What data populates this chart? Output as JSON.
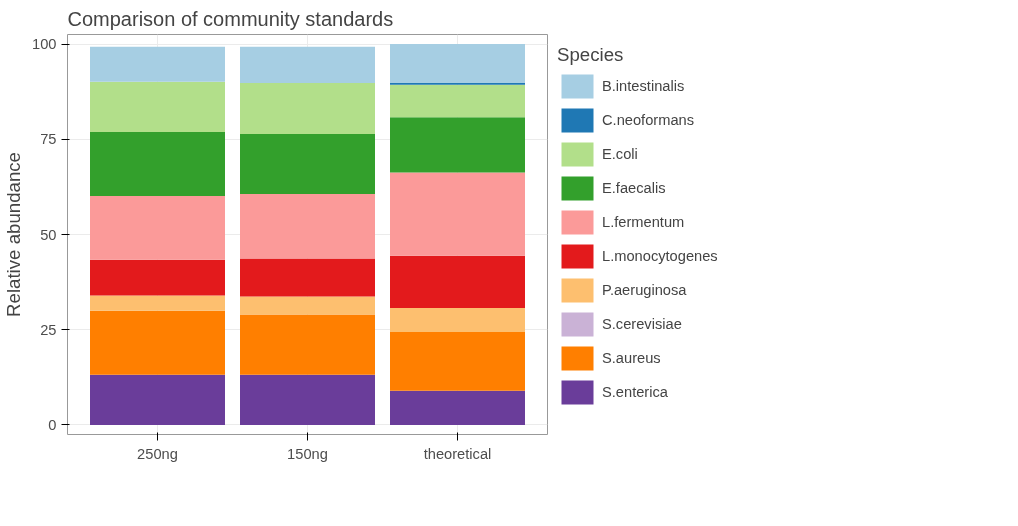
{
  "chart_data": {
    "type": "bar",
    "stacked": true,
    "title": "Comparison of community standards",
    "ylabel": "Relative abundance",
    "legend_title": "Species",
    "legend": "right",
    "grid": true,
    "categories": [
      "250ng",
      "150ng",
      "theoretical"
    ],
    "ylim": [
      -2.5,
      102.5
    ],
    "yticks": [
      0,
      25,
      50,
      75,
      100
    ],
    "series": [
      {
        "name": "S.enterica",
        "color": "#6a3d9a",
        "values": [
          13.2,
          13.2,
          9.0
        ]
      },
      {
        "name": "S.aureus",
        "color": "#ff7f00",
        "values": [
          16.8,
          15.8,
          15.4
        ]
      },
      {
        "name": "S.cerevisiae",
        "color": "#cab2d6",
        "values": [
          null,
          null,
          0
        ]
      },
      {
        "name": "P.aeruginosa",
        "color": "#fdbf6f",
        "values": [
          4.0,
          4.7,
          6.3
        ]
      },
      {
        "name": "L.monocytogenes",
        "color": "#e31a1c",
        "values": [
          9.4,
          10.0,
          13.7
        ]
      },
      {
        "name": "L.fermentum",
        "color": "#fb9a99",
        "values": [
          16.7,
          16.9,
          21.9
        ]
      },
      {
        "name": "E.faecalis",
        "color": "#33a02c",
        "values": [
          16.8,
          15.8,
          14.5
        ]
      },
      {
        "name": "E.coli",
        "color": "#b2df8a",
        "values": [
          13.2,
          13.4,
          8.5
        ]
      },
      {
        "name": "C.neoformans",
        "color": "#1f78b4",
        "values": [
          0,
          0,
          0.5
        ]
      },
      {
        "name": "B.intestinalis",
        "color": "#a6cee3",
        "values": [
          9.2,
          9.5,
          10.2
        ]
      }
    ]
  }
}
